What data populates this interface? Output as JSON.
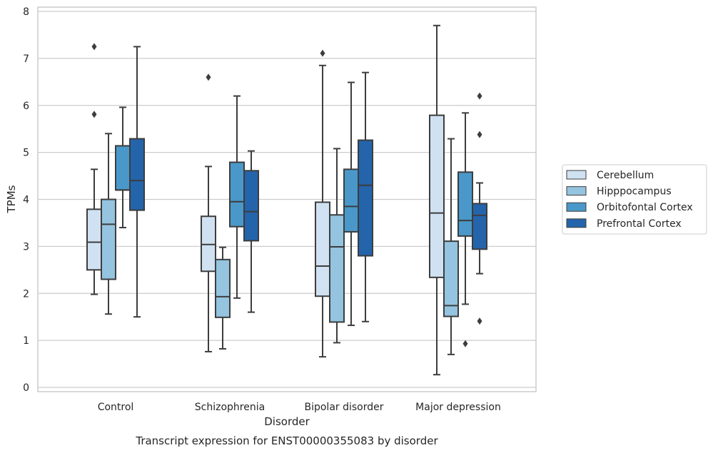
{
  "chart_data": {
    "type": "box",
    "caption": "Transcript expression for ENST00000355083 by disorder",
    "xlabel": "Disorder",
    "ylabel": "TPMs",
    "ylim": [
      -0.1,
      8.1
    ],
    "yticks": [
      0,
      1,
      2,
      3,
      4,
      5,
      6,
      7,
      8
    ],
    "grid": true,
    "legend_position": "right",
    "categories": [
      "Control",
      "Schizophrenia",
      "Bipolar disorder",
      "Major depression"
    ],
    "series": [
      {
        "name": "Cerebellum",
        "color": "#d0e1f2",
        "boxes": [
          {
            "whisker_low": 1.98,
            "q1": 2.5,
            "median": 3.09,
            "q3": 3.79,
            "whisker_high": 4.64,
            "outliers": [
              5.81,
              7.25
            ]
          },
          {
            "whisker_low": 0.76,
            "q1": 2.47,
            "median": 3.04,
            "q3": 3.64,
            "whisker_high": 4.7,
            "outliers": [
              6.6
            ]
          },
          {
            "whisker_low": 0.65,
            "q1": 1.94,
            "median": 2.58,
            "q3": 3.94,
            "whisker_high": 6.85,
            "outliers": [
              7.11
            ]
          },
          {
            "whisker_low": 0.27,
            "q1": 2.34,
            "median": 3.71,
            "q3": 5.79,
            "whisker_high": 7.7,
            "outliers": []
          }
        ]
      },
      {
        "name": "Hipppocampus",
        "color": "#94c4df",
        "boxes": [
          {
            "whisker_low": 1.56,
            "q1": 2.3,
            "median": 3.47,
            "q3": 4.0,
            "whisker_high": 5.4,
            "outliers": []
          },
          {
            "whisker_low": 0.82,
            "q1": 1.49,
            "median": 1.93,
            "q3": 2.72,
            "whisker_high": 2.98,
            "outliers": []
          },
          {
            "whisker_low": 0.95,
            "q1": 1.39,
            "median": 2.99,
            "q3": 3.67,
            "whisker_high": 5.08,
            "outliers": []
          },
          {
            "whisker_low": 0.7,
            "q1": 1.51,
            "median": 1.74,
            "q3": 3.11,
            "whisker_high": 5.29,
            "outliers": []
          }
        ]
      },
      {
        "name": "Orbitofontal Cortex",
        "color": "#4a98c9",
        "boxes": [
          {
            "whisker_low": 3.4,
            "q1": 4.2,
            "median": 4.2,
            "q3": 5.14,
            "whisker_high": 5.96,
            "outliers": []
          },
          {
            "whisker_low": 1.9,
            "q1": 3.42,
            "median": 3.95,
            "q3": 4.79,
            "whisker_high": 6.2,
            "outliers": []
          },
          {
            "whisker_low": 1.32,
            "q1": 3.31,
            "median": 3.85,
            "q3": 4.64,
            "whisker_high": 6.49,
            "outliers": []
          },
          {
            "whisker_low": 1.77,
            "q1": 3.22,
            "median": 3.55,
            "q3": 4.58,
            "whisker_high": 5.84,
            "outliers": [
              0.93
            ]
          }
        ]
      },
      {
        "name": "Prefrontal Cortex",
        "color": "#2464ab",
        "boxes": [
          {
            "whisker_low": 1.5,
            "q1": 3.77,
            "median": 4.4,
            "q3": 5.29,
            "whisker_high": 7.25,
            "outliers": []
          },
          {
            "whisker_low": 1.6,
            "q1": 3.12,
            "median": 3.74,
            "q3": 4.61,
            "whisker_high": 5.03,
            "outliers": []
          },
          {
            "whisker_low": 1.4,
            "q1": 2.8,
            "median": 4.3,
            "q3": 5.26,
            "whisker_high": 6.7,
            "outliers": []
          },
          {
            "whisker_low": 2.42,
            "q1": 2.94,
            "median": 3.66,
            "q3": 3.91,
            "whisker_high": 4.35,
            "outliers": [
              1.41,
              5.38,
              6.2
            ]
          }
        ]
      }
    ]
  }
}
